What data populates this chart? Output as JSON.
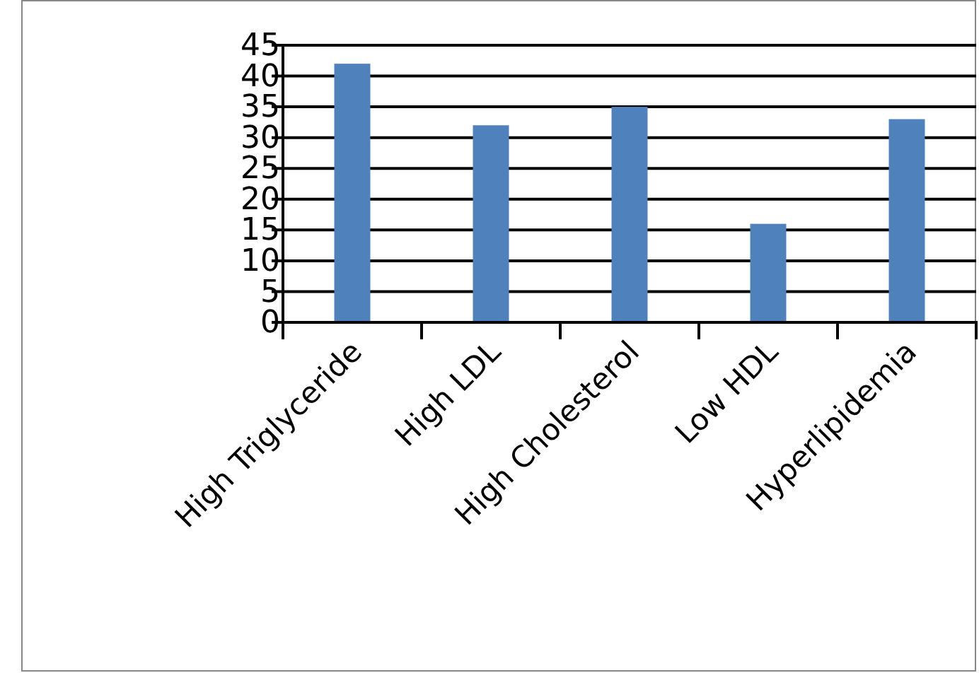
{
  "chart_data": {
    "type": "bar",
    "categories": [
      "High Triglyceride",
      "High LDL",
      "High Cholesterol",
      "Low HDL",
      "Hyperlipidemia"
    ],
    "values": [
      42,
      32,
      35,
      16,
      33
    ],
    "color": "#4f81bd",
    "ylim": [
      0,
      45
    ],
    "yticks": [
      0,
      5,
      10,
      15,
      20,
      25,
      30,
      35,
      40,
      45
    ],
    "grid": "y"
  }
}
